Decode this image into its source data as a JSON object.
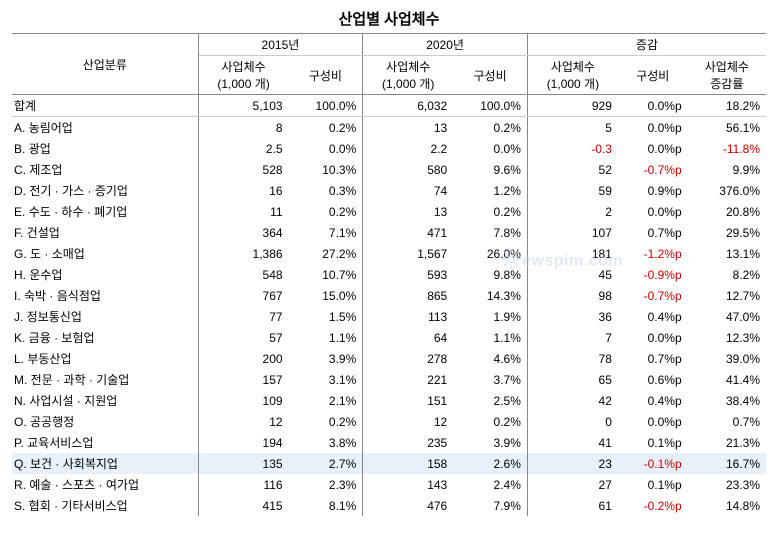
{
  "title": "산업별 사업체수",
  "header": {
    "cat": "산업분류",
    "y2015": "2015년",
    "y2020": "2020년",
    "delta": "증감",
    "count": "사업체수",
    "count_unit": "(1,000 개)",
    "ratio": "구성비",
    "growth": "사업체수",
    "growth2": "증감률"
  },
  "watermark": "ewspim.com",
  "colors": {
    "neg": "#d00000",
    "highlight": "#e8f0fa",
    "border": "#888888",
    "border_light": "#cccccc",
    "watermark": "#c8d8e8"
  },
  "rows": [
    {
      "label": "합계",
      "c15": "5,103",
      "r15": "100.0%",
      "c20": "6,032",
      "r20": "100.0%",
      "dc": "929",
      "dr": "0.0%p",
      "g": "18.2%",
      "total": true
    },
    {
      "label": "A. 농림어업",
      "c15": "8",
      "r15": "0.2%",
      "c20": "13",
      "r20": "0.2%",
      "dc": "5",
      "dr": "0.0%p",
      "g": "56.1%"
    },
    {
      "label": "B. 광업",
      "c15": "2.5",
      "r15": "0.0%",
      "c20": "2.2",
      "r20": "0.0%",
      "dc": "-0.3",
      "dc_neg": true,
      "dr": "0.0%p",
      "g": "-11.8%",
      "g_neg": true
    },
    {
      "label": "C. 제조업",
      "c15": "528",
      "r15": "10.3%",
      "c20": "580",
      "r20": "9.6%",
      "dc": "52",
      "dr": "-0.7%p",
      "dr_neg": true,
      "g": "9.9%"
    },
    {
      "label": "D. 전기 · 가스 · 증기업",
      "c15": "16",
      "r15": "0.3%",
      "c20": "74",
      "r20": "1.2%",
      "dc": "59",
      "dr": "0.9%p",
      "g": "376.0%"
    },
    {
      "label": "E. 수도 · 하수 · 폐기업",
      "c15": "11",
      "r15": "0.2%",
      "c20": "13",
      "r20": "0.2%",
      "dc": "2",
      "dr": "0.0%p",
      "g": "20.8%"
    },
    {
      "label": "F. 건설업",
      "c15": "364",
      "r15": "7.1%",
      "c20": "471",
      "r20": "7.8%",
      "dc": "107",
      "dr": "0.7%p",
      "g": "29.5%"
    },
    {
      "label": "G. 도 · 소매업",
      "c15": "1,386",
      "r15": "27.2%",
      "c20": "1,567",
      "r20": "26.0%",
      "dc": "181",
      "dr": "-1.2%p",
      "dr_neg": true,
      "g": "13.1%"
    },
    {
      "label": "H. 운수업",
      "c15": "548",
      "r15": "10.7%",
      "c20": "593",
      "r20": "9.8%",
      "dc": "45",
      "dr": "-0.9%p",
      "dr_neg": true,
      "g": "8.2%"
    },
    {
      "label": "I. 숙박 · 음식점업",
      "c15": "767",
      "r15": "15.0%",
      "c20": "865",
      "r20": "14.3%",
      "dc": "98",
      "dr": "-0.7%p",
      "dr_neg": true,
      "g": "12.7%"
    },
    {
      "label": "J. 정보통신업",
      "c15": "77",
      "r15": "1.5%",
      "c20": "113",
      "r20": "1.9%",
      "dc": "36",
      "dr": "0.4%p",
      "g": "47.0%"
    },
    {
      "label": "K. 금융 · 보험업",
      "c15": "57",
      "r15": "1.1%",
      "c20": "64",
      "r20": "1.1%",
      "dc": "7",
      "dr": "0.0%p",
      "g": "12.3%"
    },
    {
      "label": "L. 부동산업",
      "c15": "200",
      "r15": "3.9%",
      "c20": "278",
      "r20": "4.6%",
      "dc": "78",
      "dr": "0.7%p",
      "g": "39.0%"
    },
    {
      "label": "M. 전문 · 과학 · 기술업",
      "c15": "157",
      "r15": "3.1%",
      "c20": "221",
      "r20": "3.7%",
      "dc": "65",
      "dr": "0.6%p",
      "g": "41.4%"
    },
    {
      "label": "N. 사업시설 · 지원업",
      "c15": "109",
      "r15": "2.1%",
      "c20": "151",
      "r20": "2.5%",
      "dc": "42",
      "dr": "0.4%p",
      "g": "38.4%"
    },
    {
      "label": "O. 공공행정",
      "c15": "12",
      "r15": "0.2%",
      "c20": "12",
      "r20": "0.2%",
      "dc": "0",
      "dr": "0.0%p",
      "g": "0.7%"
    },
    {
      "label": "P. 교육서비스업",
      "c15": "194",
      "r15": "3.8%",
      "c20": "235",
      "r20": "3.9%",
      "dc": "41",
      "dr": "0.1%p",
      "g": "21.3%"
    },
    {
      "label": "Q. 보건 · 사회복지업",
      "c15": "135",
      "r15": "2.7%",
      "c20": "158",
      "r20": "2.6%",
      "dc": "23",
      "dr": "-0.1%p",
      "dr_neg": true,
      "g": "16.7%",
      "hl": true
    },
    {
      "label": "R. 예술 · 스포츠 · 여가업",
      "c15": "116",
      "r15": "2.3%",
      "c20": "143",
      "r20": "2.4%",
      "dc": "27",
      "dr": "0.1%p",
      "g": "23.3%"
    },
    {
      "label": "S. 협회 · 기타서비스업",
      "c15": "415",
      "r15": "8.1%",
      "c20": "476",
      "r20": "7.9%",
      "dc": "61",
      "dr": "-0.2%p",
      "dr_neg": true,
      "g": "14.8%"
    }
  ]
}
